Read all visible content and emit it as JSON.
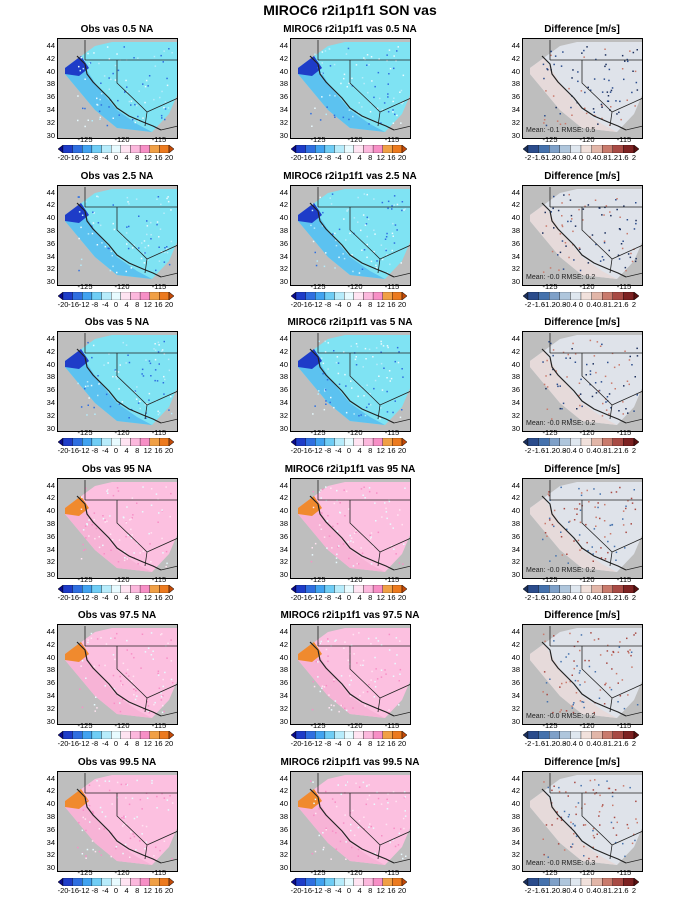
{
  "figure_title": "MIROC6 r2i1p1f1 SON vas",
  "colors": {
    "land": "#bebebe",
    "border": "#222222",
    "panel_frame": "#000000"
  },
  "axes": {
    "lat_ticks": [
      "44",
      "42",
      "40",
      "38",
      "36",
      "34",
      "32",
      "30"
    ],
    "lon_ticks": [
      "-125",
      "-120",
      "-115"
    ]
  },
  "colorbars": {
    "value": {
      "labels": [
        "-20",
        "-16",
        "-12",
        "-8",
        "-4",
        "0",
        "4",
        "8",
        "12",
        "16",
        "20"
      ],
      "colors": [
        "#0a0a8c",
        "#1e3cc8",
        "#2f6fe0",
        "#41a3f0",
        "#6fcdf5",
        "#b7ecfb",
        "#e8fbff",
        "#ffe4f2",
        "#fcb8dd",
        "#f78fc6",
        "#f0a046",
        "#ec7a1e",
        "#c24a08"
      ]
    },
    "difference": {
      "labels": [
        "-2",
        "-1.6",
        "-1.2",
        "-0.8",
        "-0.4",
        "0",
        "0.4",
        "0.8",
        "1.2",
        "1.6",
        "2"
      ],
      "colors": [
        "#1b2f5c",
        "#2b4c8c",
        "#4572ad",
        "#7ea0c8",
        "#afc6dc",
        "#dfe7ef",
        "#f1e1dc",
        "#e2b6a8",
        "#c97a6c",
        "#a84a44",
        "#7d2222",
        "#5a1010"
      ]
    }
  },
  "rows": [
    {
      "obs_title": "Obs vas 0.5 NA",
      "model_title": "MIROC6 r2i1p1f1 vas 0.5 NA",
      "diff_title": "Difference [m/s]",
      "stats": "Mean: -0.1  RMSE: 0.5",
      "kind": "cold",
      "colorbar": "value"
    },
    {
      "obs_title": "Obs vas 2.5 NA",
      "model_title": "MIROC6 r2i1p1f1 vas 2.5 NA",
      "diff_title": "Difference [m/s]",
      "stats": "Mean: -0.0  RMSE: 0.2",
      "kind": "cold",
      "colorbar": "value"
    },
    {
      "obs_title": "Obs vas 5 NA",
      "model_title": "MIROC6 r2i1p1f1 vas 5 NA",
      "diff_title": "Difference [m/s]",
      "stats": "Mean: -0.0  RMSE: 0.2",
      "kind": "cold",
      "colorbar": "value"
    },
    {
      "obs_title": "Obs vas 95 NA",
      "model_title": "MIROC6 r2i1p1f1 vas 95 NA",
      "diff_title": "Difference [m/s]",
      "stats": "Mean: -0.0  RMSE: 0.2",
      "kind": "warm",
      "colorbar": "value"
    },
    {
      "obs_title": "Obs vas 97.5 NA",
      "model_title": "MIROC6 r2i1p1f1 vas 97.5 NA",
      "diff_title": "Difference [m/s]",
      "stats": "Mean: -0.0  RMSE: 0.2",
      "kind": "warm",
      "colorbar": "value"
    },
    {
      "obs_title": "Obs vas 99.5 NA",
      "model_title": "MIROC6 r2i1p1f1 vas 99.5 NA",
      "diff_title": "Difference [m/s]",
      "stats": "Mean: -0.0  RMSE: 0.3",
      "kind": "warm",
      "colorbar": "value"
    }
  ]
}
